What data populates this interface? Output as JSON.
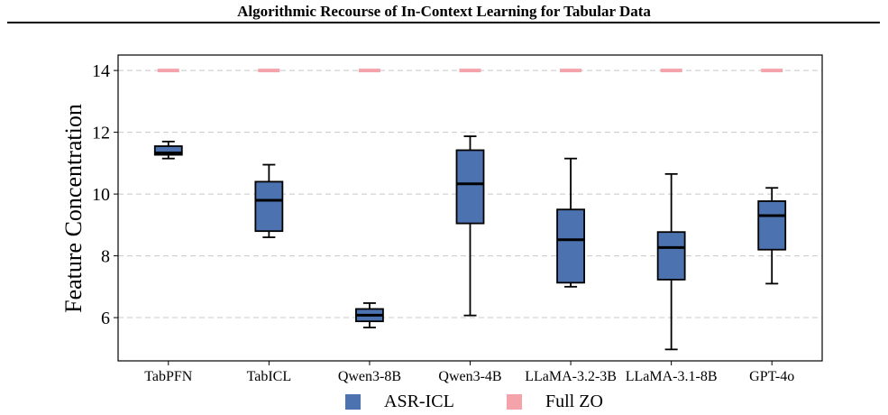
{
  "header": {
    "title": "Algorithmic Recourse of In-Context Learning for Tabular Data"
  },
  "chart_data": {
    "type": "box",
    "title": "",
    "xlabel": "",
    "ylabel": "Feature Concentration",
    "ylim": [
      4.6,
      14.5
    ],
    "yticks": [
      6,
      8,
      10,
      12,
      14
    ],
    "grid": "horizontal dashed",
    "legend_position": "bottom-center",
    "categories": [
      "TabPFN",
      "TabICL",
      "Qwen3-8B",
      "Qwen3-4B",
      "LLaMA-3.2-3B",
      "LLaMA-3.1-8B",
      "GPT-4o"
    ],
    "series": [
      {
        "name": "ASR-ICL",
        "color": "#4c72b0",
        "boxes": [
          {
            "whislo": 11.15,
            "q1": 11.27,
            "med": 11.33,
            "q3": 11.55,
            "whishi": 11.7
          },
          {
            "whislo": 8.6,
            "q1": 8.8,
            "med": 9.8,
            "q3": 10.4,
            "whishi": 10.95
          },
          {
            "whislo": 5.68,
            "q1": 5.88,
            "med": 6.08,
            "q3": 6.28,
            "whishi": 6.47
          },
          {
            "whislo": 6.07,
            "q1": 9.05,
            "med": 10.33,
            "q3": 11.42,
            "whishi": 11.87
          },
          {
            "whislo": 7.0,
            "q1": 7.13,
            "med": 8.52,
            "q3": 9.5,
            "whishi": 11.15
          },
          {
            "whislo": 4.97,
            "q1": 7.23,
            "med": 8.27,
            "q3": 8.77,
            "whishi": 10.65
          },
          {
            "whislo": 7.1,
            "q1": 8.2,
            "med": 9.3,
            "q3": 9.77,
            "whishi": 10.2
          }
        ]
      },
      {
        "name": "Full ZO",
        "color": "#f4a3ab",
        "values": [
          14,
          14,
          14,
          14,
          14,
          14,
          14
        ]
      }
    ]
  }
}
